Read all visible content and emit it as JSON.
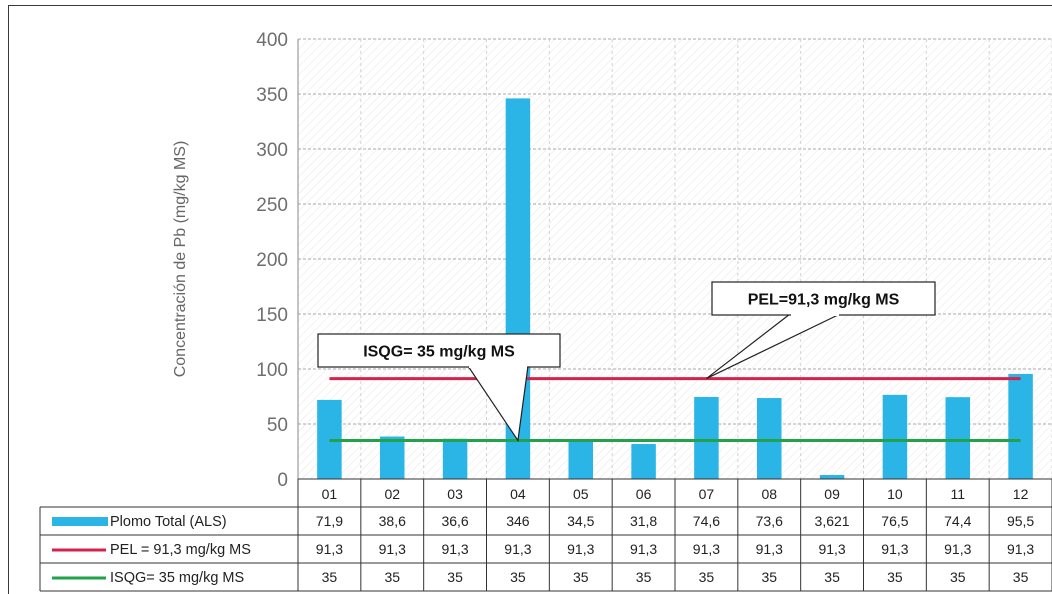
{
  "chart_data": {
    "type": "bar",
    "ylabel": "Concentración de Pb (mg/kg MS)",
    "ylim": [
      0,
      400
    ],
    "yticks": [
      0,
      50,
      100,
      150,
      200,
      250,
      300,
      350,
      400
    ],
    "grid": true,
    "categories": [
      "01",
      "02",
      "03",
      "04",
      "05",
      "06",
      "07",
      "08",
      "09",
      "10",
      "11",
      "12"
    ],
    "series": [
      {
        "name": "Plomo Total (ALS)",
        "kind": "bar",
        "color": "#2bb5e6",
        "values": [
          71.9,
          38.6,
          36.6,
          346,
          34.5,
          31.8,
          74.6,
          73.6,
          3.621,
          76.5,
          74.4,
          95.5
        ],
        "labels": [
          "71,9",
          "38,6",
          "36,6",
          "346",
          "34,5",
          "31,8",
          "74,6",
          "73,6",
          "3,621",
          "76,5",
          "74,4",
          "95,5"
        ]
      },
      {
        "name": "PEL = 91,3 mg/kg MS",
        "kind": "line",
        "color": "#d4234a",
        "values": [
          91.3,
          91.3,
          91.3,
          91.3,
          91.3,
          91.3,
          91.3,
          91.3,
          91.3,
          91.3,
          91.3,
          91.3
        ],
        "labels": [
          "91,3",
          "91,3",
          "91,3",
          "91,3",
          "91,3",
          "91,3",
          "91,3",
          "91,3",
          "91,3",
          "91,3",
          "91,3",
          "91,3"
        ]
      },
      {
        "name": "ISQG= 35 mg/kg MS",
        "kind": "line",
        "color": "#22a24a",
        "values": [
          35,
          35,
          35,
          35,
          35,
          35,
          35,
          35,
          35,
          35,
          35,
          35
        ],
        "labels": [
          "35",
          "35",
          "35",
          "35",
          "35",
          "35",
          "35",
          "35",
          "35",
          "35",
          "35",
          "35"
        ]
      }
    ],
    "annotations": [
      {
        "text": "PEL=91,3 mg/kg MS",
        "points_to": {
          "x": "07",
          "y": 91.3
        }
      },
      {
        "text": "ISQG= 35 mg/kg MS",
        "points_to": {
          "x": "04",
          "y": 35
        }
      }
    ],
    "legend": "data-table-below"
  }
}
